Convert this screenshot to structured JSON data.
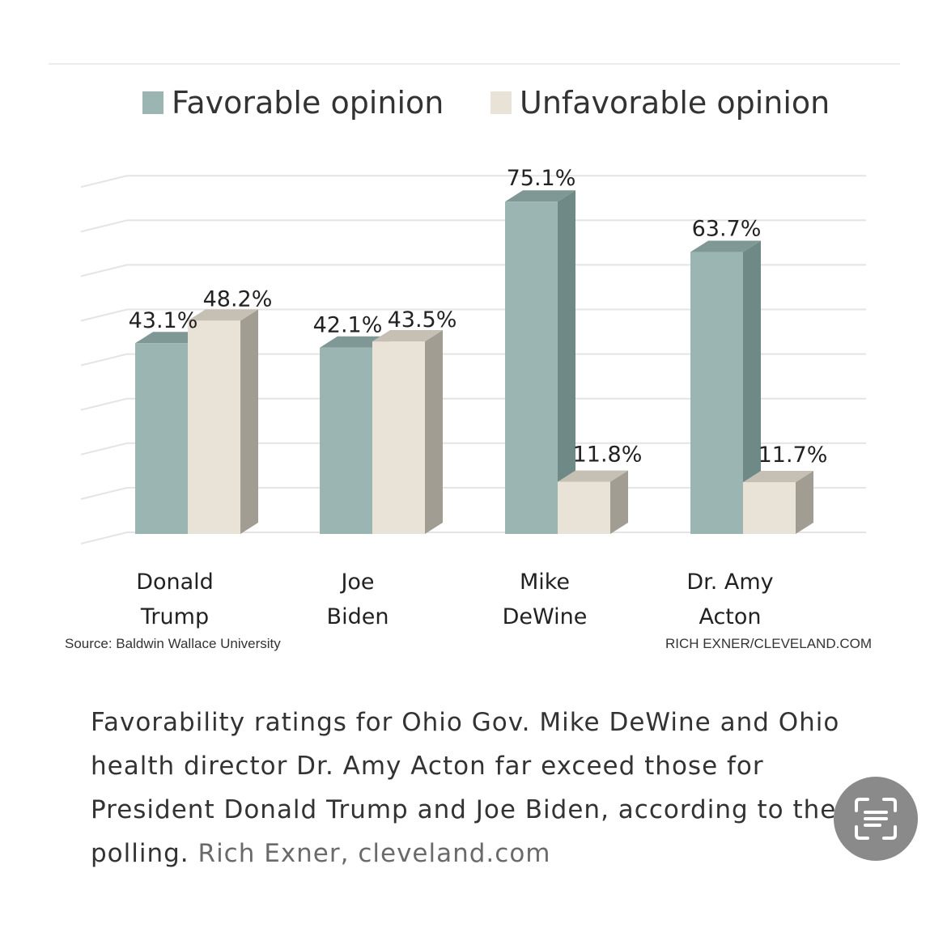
{
  "chart_data": {
    "type": "bar",
    "categories": [
      "Donald Trump",
      "Joe Biden",
      "Mike DeWine",
      "Dr. Amy Acton"
    ],
    "category_lines": [
      [
        "Donald",
        "Trump"
      ],
      [
        "Joe",
        "Biden"
      ],
      [
        "Mike",
        "DeWine"
      ],
      [
        "Dr. Amy",
        "Acton"
      ]
    ],
    "series": [
      {
        "name": "Favorable opinion",
        "values": [
          43.1,
          42.1,
          75.1,
          63.7
        ],
        "labels": [
          "43.1%",
          "42.1%",
          "75.1%",
          "63.7%"
        ],
        "color": "#9ab5b2"
      },
      {
        "name": "Unfavorable opinion",
        "values": [
          48.2,
          43.5,
          11.8,
          11.7
        ],
        "labels": [
          "48.2%",
          "43.5%",
          "11.8%",
          "11.7%"
        ],
        "color": "#e9e2d6"
      }
    ],
    "ylim": [
      0,
      85
    ],
    "grid": true,
    "legend": "top",
    "style": "3d-column"
  },
  "source": "Source: Baldwin Wallace University",
  "credit": "RICH EXNER/CLEVELAND.COM",
  "caption": {
    "text": "Favorability ratings for Ohio Gov. Mike DeWine and Ohio health director Dr. Amy Acton far exceed those for President Donald Trump and Joe Biden, according to the polling.",
    "credit": "Rich Exner, cleveland.com"
  },
  "icons": {
    "scan_button": "text-scan-icon"
  },
  "colors": {
    "favorable_side": "#6f8986",
    "favorable_top": "#7f9895",
    "unfavorable_side": "#a29d92",
    "unfavorable_top": "#c6c0b4",
    "scan_button": "#8a8a8a"
  }
}
